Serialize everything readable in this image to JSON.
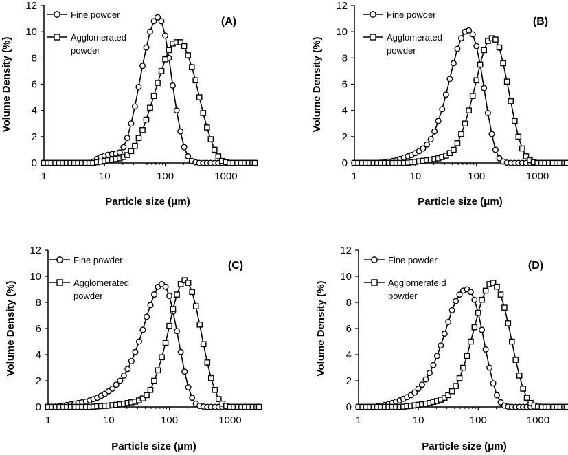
{
  "chart_data": [
    {
      "type": "scatter",
      "panel_label": "(A)",
      "xlabel": "Particle size (μm)",
      "ylabel": "Volume Density (%)",
      "xscale": "log",
      "xlim": [
        1,
        3000
      ],
      "ylim": [
        0,
        12
      ],
      "xticks": [
        "1",
        "10",
        "100",
        "1000"
      ],
      "yticks": [
        "0",
        "2",
        "4",
        "6",
        "8",
        "10",
        "12"
      ],
      "legend_position": "top-left",
      "series": [
        {
          "name": "Fine powder",
          "marker": "circle",
          "x": [
            1,
            1.16,
            1.33,
            1.54,
            1.78,
            2.05,
            2.37,
            2.74,
            3.16,
            3.65,
            4.22,
            4.87,
            5.62,
            6.49,
            7.5,
            8.66,
            10,
            11.5,
            13.3,
            15.4,
            17.8,
            20.5,
            23.7,
            27.4,
            31.6,
            36.5,
            42.2,
            48.7,
            56.2,
            64.9,
            75,
            86.6,
            100,
            115,
            133,
            154,
            178,
            205,
            237,
            274,
            316,
            365,
            422,
            487,
            562,
            649,
            750,
            866,
            1000,
            1155,
            1334,
            1540,
            1778,
            2054,
            2371,
            2738,
            3000
          ],
          "y": [
            0,
            0,
            0,
            0,
            0,
            0,
            0,
            0,
            0,
            0,
            0,
            0,
            0,
            0.1,
            0.3,
            0.45,
            0.55,
            0.62,
            0.68,
            0.72,
            0.8,
            1.2,
            1.9,
            3.0,
            4.3,
            5.8,
            7.4,
            8.8,
            10.0,
            10.8,
            11.1,
            10.8,
            9.7,
            8.0,
            5.9,
            4.0,
            2.4,
            1.2,
            0.5,
            0.15,
            0.05,
            0,
            0,
            0,
            0,
            0,
            0,
            0,
            0,
            0,
            0,
            0,
            0,
            0,
            0,
            0,
            0
          ]
        },
        {
          "name": "Agglomerated powder",
          "marker": "square",
          "x": [
            1,
            1.16,
            1.33,
            1.54,
            1.78,
            2.05,
            2.37,
            2.74,
            3.16,
            3.65,
            4.22,
            4.87,
            5.62,
            6.49,
            7.5,
            8.66,
            10,
            11.5,
            13.3,
            15.4,
            17.8,
            20.5,
            23.7,
            27.4,
            31.6,
            36.5,
            42.2,
            48.7,
            56.2,
            64.9,
            75,
            86.6,
            100,
            115,
            133,
            154,
            178,
            205,
            237,
            274,
            316,
            365,
            422,
            487,
            562,
            649,
            750,
            866,
            1000,
            1155,
            1334,
            1540,
            1778,
            2054,
            2371,
            2738,
            3000
          ],
          "y": [
            0,
            0,
            0,
            0,
            0,
            0,
            0,
            0,
            0,
            0,
            0,
            0,
            0,
            0,
            0.05,
            0.1,
            0.15,
            0.2,
            0.25,
            0.3,
            0.35,
            0.45,
            0.6,
            0.9,
            1.3,
            1.9,
            2.5,
            3.3,
            4.2,
            5.1,
            6.1,
            7.0,
            7.9,
            8.6,
            9.1,
            9.2,
            9.2,
            8.9,
            8.2,
            7.3,
            6.3,
            5.0,
            3.8,
            2.7,
            1.8,
            1.0,
            0.5,
            0.15,
            0.05,
            0,
            0,
            0,
            0,
            0,
            0,
            0,
            0
          ]
        }
      ]
    },
    {
      "type": "scatter",
      "panel_label": "(B)",
      "xlabel": "Particle size (μm)",
      "ylabel": "Volume Density (%)",
      "xscale": "log",
      "xlim": [
        1,
        3000
      ],
      "ylim": [
        0,
        12
      ],
      "xticks": [
        "1",
        "10",
        "100",
        "1000"
      ],
      "yticks": [
        "0",
        "2",
        "4",
        "6",
        "8",
        "10",
        "12"
      ],
      "legend_position": "top-left",
      "series": [
        {
          "name": "Fine powder",
          "marker": "circle",
          "x": [
            1,
            1.16,
            1.33,
            1.54,
            1.78,
            2.05,
            2.37,
            2.74,
            3.16,
            3.65,
            4.22,
            4.87,
            5.62,
            6.49,
            7.5,
            8.66,
            10,
            11.5,
            13.3,
            15.4,
            17.8,
            20.5,
            23.7,
            27.4,
            31.6,
            36.5,
            42.2,
            48.7,
            56.2,
            64.9,
            75,
            86.6,
            100,
            115,
            133,
            154,
            178,
            205,
            237,
            274,
            316,
            365,
            422,
            487,
            562,
            649,
            750,
            866,
            1000,
            1155,
            1334,
            1540,
            1778,
            2054,
            2371,
            2738,
            3000
          ],
          "y": [
            0,
            0,
            0,
            0,
            0,
            0,
            0,
            0.02,
            0.05,
            0.1,
            0.15,
            0.2,
            0.3,
            0.4,
            0.5,
            0.6,
            0.75,
            0.9,
            1.1,
            1.4,
            1.8,
            2.4,
            3.2,
            4.1,
            5.2,
            6.4,
            7.6,
            8.7,
            9.5,
            10.0,
            10.1,
            9.8,
            8.9,
            7.5,
            5.7,
            3.8,
            2.2,
            1.0,
            0.35,
            0.1,
            0.02,
            0,
            0,
            0,
            0,
            0,
            0,
            0,
            0,
            0,
            0,
            0,
            0,
            0,
            0,
            0,
            0
          ]
        },
        {
          "name": "Agglomerated powder",
          "marker": "square",
          "x": [
            1,
            1.16,
            1.33,
            1.54,
            1.78,
            2.05,
            2.37,
            2.74,
            3.16,
            3.65,
            4.22,
            4.87,
            5.62,
            6.49,
            7.5,
            8.66,
            10,
            11.5,
            13.3,
            15.4,
            17.8,
            20.5,
            23.7,
            27.4,
            31.6,
            36.5,
            42.2,
            48.7,
            56.2,
            64.9,
            75,
            86.6,
            100,
            115,
            133,
            154,
            178,
            205,
            237,
            274,
            316,
            365,
            422,
            487,
            562,
            649,
            750,
            866,
            1000,
            1155,
            1334,
            1540,
            1778,
            2054,
            2371,
            2738,
            3000
          ],
          "y": [
            0,
            0,
            0,
            0,
            0,
            0,
            0,
            0,
            0,
            0,
            0,
            0,
            0,
            0,
            0.02,
            0.05,
            0.08,
            0.12,
            0.16,
            0.2,
            0.25,
            0.3,
            0.35,
            0.45,
            0.55,
            0.75,
            1.0,
            1.5,
            2.2,
            3.0,
            4.0,
            5.1,
            6.3,
            7.5,
            8.6,
            9.3,
            9.5,
            9.4,
            8.8,
            7.6,
            6.2,
            4.7,
            3.2,
            2.0,
            1.1,
            0.5,
            0.2,
            0.05,
            0,
            0,
            0,
            0,
            0,
            0,
            0,
            0,
            0
          ]
        }
      ]
    },
    {
      "type": "scatter",
      "panel_label": "(C)",
      "xlabel": "Particle size (μm)",
      "ylabel": "Volume Density (%)",
      "xscale": "log",
      "xlim": [
        1,
        3000
      ],
      "ylim": [
        0,
        12
      ],
      "xticks": [
        "1",
        "10",
        "100",
        "1000"
      ],
      "yticks": [
        "0",
        "2",
        "4",
        "6",
        "8",
        "10",
        "12"
      ],
      "legend_position": "top-left",
      "series": [
        {
          "name": "Fine powder",
          "marker": "circle",
          "x": [
            1,
            1.16,
            1.33,
            1.54,
            1.78,
            2.05,
            2.37,
            2.74,
            3.16,
            3.65,
            4.22,
            4.87,
            5.62,
            6.49,
            7.5,
            8.66,
            10,
            11.5,
            13.3,
            15.4,
            17.8,
            20.5,
            23.7,
            27.4,
            31.6,
            36.5,
            42.2,
            48.7,
            56.2,
            64.9,
            75,
            86.6,
            100,
            115,
            133,
            154,
            178,
            205,
            237,
            274,
            316,
            365,
            422,
            487,
            562,
            649,
            750,
            866,
            1000,
            1155,
            1334,
            1540,
            1778,
            2054,
            2371,
            2738,
            3000
          ],
          "y": [
            0,
            0,
            0.02,
            0.05,
            0.1,
            0.15,
            0.2,
            0.25,
            0.3,
            0.35,
            0.4,
            0.5,
            0.6,
            0.7,
            0.85,
            1.0,
            1.2,
            1.4,
            1.7,
            2.0,
            2.4,
            2.9,
            3.5,
            4.2,
            5.0,
            5.9,
            6.9,
            7.8,
            8.6,
            9.2,
            9.4,
            9.2,
            8.5,
            7.3,
            5.8,
            4.2,
            2.7,
            1.5,
            0.7,
            0.25,
            0.08,
            0.02,
            0,
            0,
            0,
            0,
            0,
            0,
            0,
            0,
            0,
            0,
            0,
            0,
            0,
            0,
            0
          ]
        },
        {
          "name": "Agglomerated powder",
          "marker": "square",
          "x": [
            1,
            1.16,
            1.33,
            1.54,
            1.78,
            2.05,
            2.37,
            2.74,
            3.16,
            3.65,
            4.22,
            4.87,
            5.62,
            6.49,
            7.5,
            8.66,
            10,
            11.5,
            13.3,
            15.4,
            17.8,
            20.5,
            23.7,
            27.4,
            31.6,
            36.5,
            42.2,
            48.7,
            56.2,
            64.9,
            75,
            86.6,
            100,
            115,
            133,
            154,
            178,
            205,
            237,
            274,
            316,
            365,
            422,
            487,
            562,
            649,
            750,
            866,
            1000,
            1155,
            1334,
            1540,
            1778,
            2054,
            2371,
            2738,
            3000
          ],
          "y": [
            0,
            0,
            0,
            0,
            0,
            0,
            0,
            0,
            0,
            0,
            0,
            0,
            0.02,
            0.04,
            0.06,
            0.08,
            0.1,
            0.13,
            0.16,
            0.2,
            0.25,
            0.3,
            0.35,
            0.4,
            0.5,
            0.65,
            0.9,
            1.3,
            2.0,
            2.8,
            3.8,
            4.9,
            6.2,
            7.5,
            8.6,
            9.4,
            9.7,
            9.5,
            8.8,
            7.7,
            6.3,
            4.8,
            3.4,
            2.2,
            1.3,
            0.6,
            0.25,
            0.08,
            0,
            0,
            0,
            0,
            0,
            0,
            0,
            0,
            0
          ]
        }
      ]
    },
    {
      "type": "scatter",
      "panel_label": "(D)",
      "xlabel": "Particle size (μm)",
      "ylabel": "Volume Density (%)",
      "xscale": "log",
      "xlim": [
        1,
        3000
      ],
      "ylim": [
        0,
        12
      ],
      "xticks": [
        "1",
        "10",
        "100",
        "1000"
      ],
      "yticks": [
        "0",
        "2",
        "4",
        "6",
        "8",
        "10",
        "12"
      ],
      "legend_position": "top-left",
      "series": [
        {
          "name": "Fine powder",
          "marker": "circle",
          "x": [
            1,
            1.16,
            1.33,
            1.54,
            1.78,
            2.05,
            2.37,
            2.74,
            3.16,
            3.65,
            4.22,
            4.87,
            5.62,
            6.49,
            7.5,
            8.66,
            10,
            11.5,
            13.3,
            15.4,
            17.8,
            20.5,
            23.7,
            27.4,
            31.6,
            36.5,
            42.2,
            48.7,
            56.2,
            64.9,
            75,
            86.6,
            100,
            115,
            133,
            154,
            178,
            205,
            237,
            274,
            316,
            365,
            422,
            487,
            562,
            649,
            750,
            866,
            1000,
            1155,
            1334,
            1540,
            1778,
            2054,
            2371,
            2738,
            3000
          ],
          "y": [
            0,
            0,
            0,
            0,
            0,
            0.03,
            0.08,
            0.15,
            0.22,
            0.3,
            0.4,
            0.5,
            0.62,
            0.75,
            0.9,
            1.1,
            1.4,
            1.7,
            2.1,
            2.6,
            3.2,
            3.9,
            4.7,
            5.6,
            6.5,
            7.4,
            8.1,
            8.6,
            8.9,
            9.0,
            8.8,
            8.2,
            7.2,
            5.9,
            4.4,
            3.0,
            1.8,
            0.9,
            0.35,
            0.1,
            0.02,
            0,
            0,
            0,
            0,
            0,
            0,
            0,
            0,
            0,
            0,
            0,
            0,
            0,
            0,
            0,
            0
          ]
        },
        {
          "name": "Agglomerate d powder",
          "marker": "square",
          "x": [
            1,
            1.16,
            1.33,
            1.54,
            1.78,
            2.05,
            2.37,
            2.74,
            3.16,
            3.65,
            4.22,
            4.87,
            5.62,
            6.49,
            7.5,
            8.66,
            10,
            11.5,
            13.3,
            15.4,
            17.8,
            20.5,
            23.7,
            27.4,
            31.6,
            36.5,
            42.2,
            48.7,
            56.2,
            64.9,
            75,
            86.6,
            100,
            115,
            133,
            154,
            178,
            205,
            237,
            274,
            316,
            365,
            422,
            487,
            562,
            649,
            750,
            866,
            1000,
            1155,
            1334,
            1540,
            1778,
            2054,
            2371,
            2738,
            3000
          ],
          "y": [
            0,
            0,
            0,
            0,
            0,
            0,
            0,
            0,
            0,
            0,
            0,
            0,
            0.02,
            0.05,
            0.08,
            0.12,
            0.16,
            0.2,
            0.25,
            0.3,
            0.38,
            0.45,
            0.55,
            0.7,
            0.9,
            1.2,
            1.6,
            2.2,
            3.0,
            3.9,
            5.0,
            6.1,
            7.2,
            8.2,
            8.9,
            9.4,
            9.5,
            9.2,
            8.6,
            7.6,
            6.4,
            5.0,
            3.6,
            2.4,
            1.4,
            0.7,
            0.3,
            0.1,
            0.02,
            0,
            0,
            0,
            0,
            0,
            0,
            0,
            0
          ]
        }
      ]
    }
  ]
}
